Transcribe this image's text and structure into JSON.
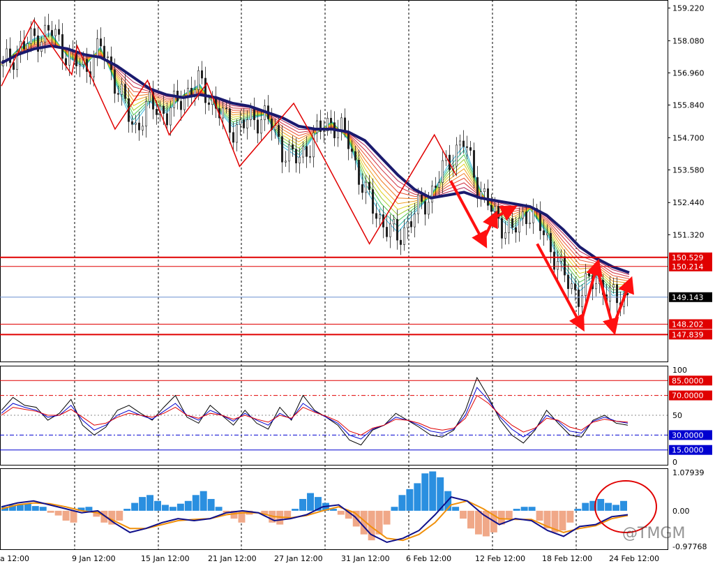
{
  "chart_data": {
    "type": "candlestick",
    "grid": true,
    "x_labels": [
      "a 12:00",
      "9 Jan 12:00",
      "15 Jan 12:00",
      "21 Jan 12:00",
      "27 Jan 12:00",
      "31 Jan 12:00",
      "6 Feb 12:00",
      "12 Feb 12:00",
      "18 Feb 12:00",
      "24 Feb 12:00"
    ],
    "price_panel": {
      "ylim": [
        146.9,
        159.5
      ],
      "y_ticks": [
        "159.220",
        "158.080",
        "156.960",
        "155.840",
        "154.700",
        "153.580",
        "152.440",
        "151.320"
      ],
      "y_tick_values": [
        159.22,
        158.08,
        156.96,
        155.84,
        154.7,
        153.58,
        152.44,
        151.32
      ],
      "current_price": "149.143",
      "current_price_value": 149.143,
      "levels": [
        {
          "label": "150.529",
          "value": 150.529,
          "color": "#e00000"
        },
        {
          "label": "150.214",
          "value": 150.214,
          "color": "#e00000"
        },
        {
          "label": "148.202",
          "value": 148.202,
          "color": "#e00000"
        },
        {
          "label": "147.839",
          "value": 147.839,
          "color": "#e00000"
        }
      ],
      "close_path": [
        157.2,
        157.8,
        158.2,
        158.4,
        157.5,
        157.1,
        157.9,
        156.4,
        155.0,
        155.9,
        155.5,
        156.2,
        156.6,
        155.7,
        155.0,
        155.3,
        155.5,
        154.3,
        153.9,
        154.8,
        155.3,
        154.6,
        152.8,
        151.8,
        151.2,
        152.0,
        152.7,
        153.8,
        154.6,
        152.9,
        151.9,
        151.4,
        152.2,
        151.3,
        150.0,
        149.2,
        149.8,
        149.1,
        149.2
      ],
      "ma_path": [
        157.3,
        157.6,
        157.8,
        157.9,
        157.8,
        157.6,
        157.5,
        157.2,
        156.8,
        156.4,
        156.2,
        156.1,
        156.2,
        156.1,
        155.9,
        155.8,
        155.6,
        155.4,
        155.1,
        155.0,
        155.0,
        154.9,
        154.6,
        154.0,
        153.4,
        152.9,
        152.6,
        152.7,
        152.8,
        152.6,
        152.5,
        152.4,
        152.3,
        152.0,
        151.5,
        150.9,
        150.5,
        150.2,
        150.0
      ],
      "zigzag": [
        {
          "x": 0,
          "y": 156.5
        },
        {
          "x": 6,
          "y": 158.8
        },
        {
          "x": 13,
          "y": 156.9
        },
        {
          "x": 14,
          "y": 157.9
        },
        {
          "x": 21,
          "y": 155.0
        },
        {
          "x": 27,
          "y": 156.7
        },
        {
          "x": 31,
          "y": 154.8
        },
        {
          "x": 38,
          "y": 156.6
        },
        {
          "x": 44,
          "y": 153.7
        },
        {
          "x": 54,
          "y": 155.9
        },
        {
          "x": 57,
          "y": 154.9
        },
        {
          "x": 68,
          "y": 151.0
        },
        {
          "x": 80,
          "y": 154.8
        },
        {
          "x": 84,
          "y": 153.4
        }
      ],
      "arrows": [
        {
          "from": [
            83,
            153.2
          ],
          "to": [
            89,
            151.1
          ]
        },
        {
          "from": [
            89,
            151.1
          ],
          "to": [
            91,
            151.9
          ]
        },
        {
          "from": [
            91,
            151.9
          ],
          "to": [
            94,
            152.2
          ]
        },
        {
          "from": [
            99,
            151.0
          ],
          "to": [
            107,
            148.2
          ]
        },
        {
          "from": [
            107,
            148.2
          ],
          "to": [
            110,
            150.2
          ]
        },
        {
          "from": [
            110,
            150.2
          ],
          "to": [
            113,
            148.1
          ]
        },
        {
          "from": [
            113,
            148.1
          ],
          "to": [
            116,
            149.6
          ]
        }
      ]
    },
    "oscillator_panel": {
      "ylim": [
        0,
        100
      ],
      "y_ticks": [
        "100",
        "50",
        "0"
      ],
      "y_tick_values": [
        100,
        50,
        0
      ],
      "levels": [
        {
          "label": "85.0000",
          "value": 85,
          "color": "#e00000",
          "style": "solid"
        },
        {
          "label": "70.0000",
          "value": 70,
          "color": "#e00000",
          "style": "dashdot"
        },
        {
          "label": "30.0000",
          "value": 30,
          "color": "#0000d0",
          "style": "dashdot"
        },
        {
          "label": "15.0000",
          "value": 15,
          "color": "#0000d0",
          "style": "solid"
        }
      ],
      "series": [
        {
          "color": "#000000",
          "values": [
            55,
            68,
            60,
            58,
            45,
            52,
            66,
            40,
            30,
            38,
            55,
            60,
            52,
            45,
            58,
            70,
            48,
            42,
            60,
            50,
            40,
            55,
            42,
            36,
            58,
            45,
            70,
            55,
            48,
            40,
            25,
            20,
            35,
            40,
            52,
            45,
            38,
            30,
            28,
            35,
            55,
            88,
            68,
            45,
            30,
            22,
            35,
            55,
            42,
            30,
            28,
            45,
            50,
            42,
            40
          ]
        },
        {
          "color": "#0000cc",
          "values": [
            52,
            62,
            58,
            55,
            48,
            50,
            60,
            45,
            35,
            40,
            50,
            55,
            50,
            46,
            54,
            62,
            50,
            45,
            55,
            50,
            44,
            52,
            45,
            40,
            52,
            46,
            62,
            54,
            48,
            42,
            30,
            26,
            36,
            40,
            48,
            45,
            40,
            34,
            32,
            36,
            50,
            78,
            65,
            48,
            36,
            28,
            36,
            50,
            44,
            34,
            32,
            44,
            48,
            44,
            42
          ]
        },
        {
          "color": "#e00000",
          "values": [
            50,
            58,
            56,
            54,
            50,
            50,
            56,
            48,
            40,
            42,
            48,
            52,
            50,
            48,
            52,
            58,
            50,
            47,
            52,
            50,
            46,
            50,
            46,
            43,
            50,
            47,
            58,
            53,
            49,
            44,
            34,
            30,
            37,
            40,
            46,
            45,
            42,
            37,
            35,
            37,
            47,
            70,
            62,
            50,
            40,
            33,
            37,
            47,
            45,
            38,
            35,
            43,
            46,
            44,
            43
          ]
        }
      ]
    },
    "macd_panel": {
      "ylim": [
        -0.97768,
        1.07939
      ],
      "y_ticks": [
        "1.07939",
        "0.00",
        "-0.97768"
      ],
      "y_tick_values": [
        1.07939,
        0.0,
        -0.97768
      ],
      "histogram": [
        0.1,
        0.15,
        0.15,
        0.18,
        0.12,
        0.1,
        -0.05,
        -0.12,
        -0.25,
        -0.3,
        0.08,
        0.1,
        -0.15,
        -0.3,
        -0.35,
        -0.25,
        0.05,
        0.2,
        0.35,
        0.4,
        0.25,
        0.15,
        0.1,
        0.18,
        0.25,
        0.4,
        0.5,
        0.3,
        0.1,
        -0.05,
        -0.2,
        -0.3,
        -0.1,
        0.0,
        -0.1,
        -0.3,
        -0.35,
        -0.2,
        0.05,
        0.3,
        0.45,
        0.35,
        0.2,
        0.05,
        -0.1,
        -0.2,
        -0.4,
        -0.6,
        -0.75,
        -0.6,
        -0.35,
        0.1,
        0.4,
        0.55,
        0.7,
        0.95,
        1.0,
        0.85,
        0.5,
        0.1,
        -0.2,
        -0.45,
        -0.6,
        -0.65,
        -0.55,
        -0.35,
        -0.2,
        0.05,
        0.1,
        0.1,
        -0.25,
        -0.45,
        -0.55,
        -0.5,
        -0.3,
        0.05,
        0.2,
        0.25,
        0.3,
        0.2,
        0.15,
        0.25
      ],
      "macd_line": [
        0.1,
        0.2,
        0.25,
        0.15,
        0.05,
        -0.05,
        0.0,
        -0.3,
        -0.55,
        -0.45,
        -0.3,
        -0.2,
        -0.25,
        -0.2,
        -0.05,
        0.0,
        -0.05,
        -0.25,
        -0.2,
        -0.1,
        0.1,
        0.15,
        -0.15,
        -0.6,
        -0.8,
        -0.7,
        -0.5,
        -0.1,
        0.35,
        0.25,
        -0.1,
        -0.35,
        -0.2,
        -0.25,
        -0.5,
        -0.65,
        -0.4,
        -0.35,
        -0.15,
        -0.1
      ],
      "signal_line": [
        0.05,
        0.15,
        0.2,
        0.18,
        0.1,
        0.0,
        -0.05,
        -0.25,
        -0.45,
        -0.45,
        -0.35,
        -0.25,
        -0.22,
        -0.2,
        -0.1,
        -0.05,
        -0.05,
        -0.15,
        -0.18,
        -0.12,
        0.0,
        0.1,
        -0.05,
        -0.4,
        -0.7,
        -0.75,
        -0.6,
        -0.3,
        0.15,
        0.25,
        0.05,
        -0.2,
        -0.22,
        -0.22,
        -0.4,
        -0.55,
        -0.45,
        -0.38,
        -0.2,
        -0.12
      ]
    }
  },
  "watermark": "@TMGM"
}
